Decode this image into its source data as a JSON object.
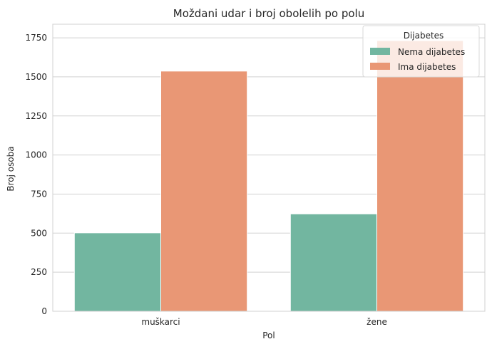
{
  "chart_data": {
    "type": "bar",
    "title": "Moždani udar i broj obolelih po polu",
    "xlabel": "Pol",
    "ylabel": "Broj osoba",
    "categories": [
      "muškarci",
      "žene"
    ],
    "series": [
      {
        "name": "Nema dijabetes",
        "values": [
          502,
          623
        ],
        "color": "#72b6a0"
      },
      {
        "name": "Ima dijabetes",
        "values": [
          1537,
          1732
        ],
        "color": "#e99775"
      }
    ],
    "ylim": [
      0,
      1837
    ],
    "yticks": [
      0,
      250,
      500,
      750,
      1000,
      1250,
      1500,
      1750
    ],
    "grid": "y",
    "legend": {
      "title": "Dijabetes",
      "placement": "top-right"
    }
  }
}
